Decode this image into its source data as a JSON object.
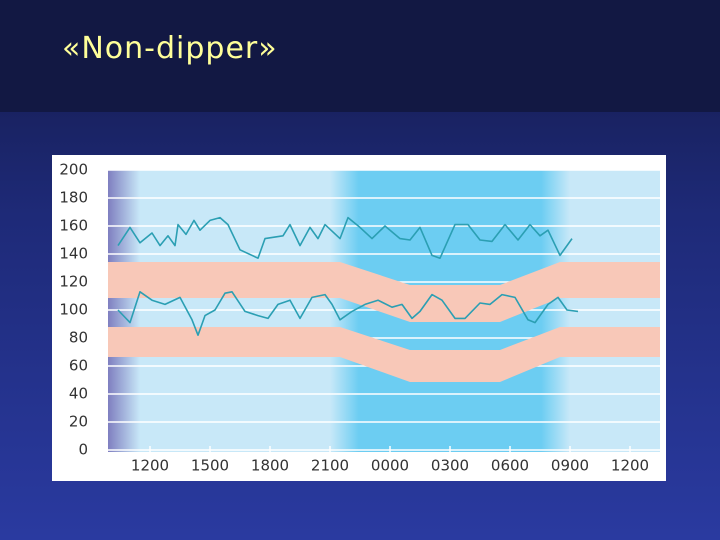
{
  "chart_data": {
    "type": "line",
    "title": "«Non-dipper»",
    "xlim": [
      9.9,
      37.5
    ],
    "xticks": [
      {
        "value": 12,
        "label": "1200"
      },
      {
        "value": 15,
        "label": "1500"
      },
      {
        "value": 18,
        "label": "1800"
      },
      {
        "value": 21,
        "label": "2100"
      },
      {
        "value": 24,
        "label": "0000"
      },
      {
        "value": 27,
        "label": "0300"
      },
      {
        "value": 30,
        "label": "0600"
      },
      {
        "value": 33,
        "label": "0900"
      },
      {
        "value": 36,
        "label": "1200"
      }
    ],
    "ylim": [
      0,
      200
    ],
    "yticks": [
      0,
      20,
      40,
      60,
      80,
      100,
      120,
      140,
      160,
      180,
      200
    ],
    "grid": true,
    "series": [
      {
        "color": "#2b9fb3",
        "x": [
          10.4,
          11,
          11.5,
          12.1,
          12.5,
          12.9,
          13.25,
          13.4,
          13.8,
          14.2,
          14.5,
          15,
          15.5,
          15.9,
          16.5,
          17.4,
          17.75,
          18.65,
          19,
          19.5,
          20,
          20.4,
          20.75,
          21.5,
          21.9,
          22.5,
          23.1,
          23.75,
          24.5,
          25,
          25.5,
          26.1,
          26.5,
          27.25,
          27.9,
          28.5,
          29.1,
          29.75,
          30.4,
          31,
          31.5,
          31.9,
          32.5,
          33.1
        ],
        "values": [
          146,
          159,
          148,
          155,
          146,
          153,
          146,
          161,
          154,
          164,
          157,
          164,
          166,
          161,
          143,
          137,
          151,
          153,
          161,
          146,
          159,
          151,
          161,
          151,
          166,
          159,
          151,
          160,
          151,
          150,
          159,
          139,
          137,
          161,
          161,
          150,
          149,
          161,
          150,
          161,
          153,
          157,
          139,
          151
        ]
      },
      {
        "color": "#2b9fb3",
        "x": [
          10.4,
          11,
          11.5,
          12.1,
          12.75,
          13.5,
          14.1,
          14.4,
          14.75,
          15.25,
          15.75,
          16.1,
          16.75,
          17.4,
          17.9,
          18.4,
          19,
          19.5,
          20.1,
          20.75,
          21.1,
          21.5,
          22.1,
          22.75,
          23.4,
          24.1,
          24.6,
          25.1,
          25.5,
          26.1,
          26.6,
          27.25,
          27.75,
          28.5,
          29,
          29.6,
          30.25,
          30.9,
          31.25,
          31.9,
          32.4,
          32.85,
          33.4
        ],
        "values": [
          100,
          91,
          113,
          107,
          104,
          109,
          93,
          82,
          96,
          100,
          112,
          113,
          99,
          96,
          94,
          104,
          107,
          94,
          109,
          111,
          104,
          93,
          99,
          104,
          107,
          102,
          104,
          94,
          99,
          111,
          107,
          94,
          94,
          105,
          104,
          111,
          109,
          93,
          91,
          104,
          109,
          100,
          99
        ]
      }
    ]
  }
}
